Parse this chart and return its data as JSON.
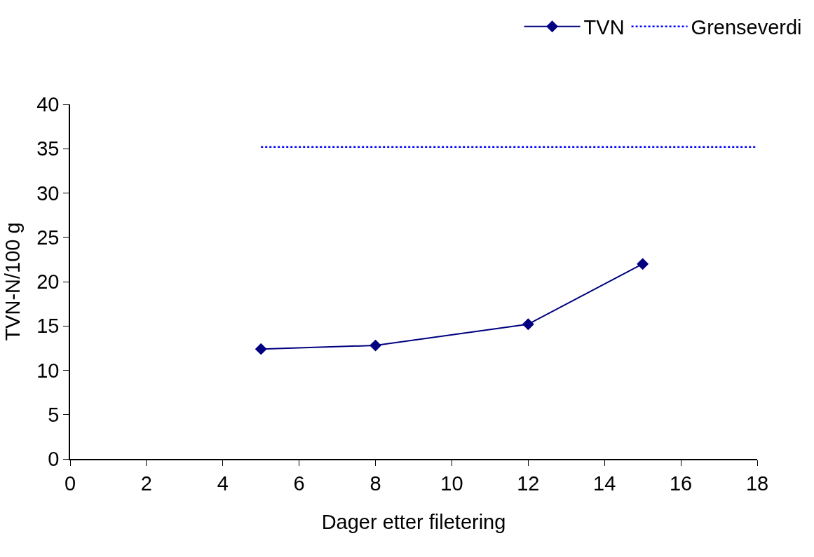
{
  "chart_data": {
    "type": "line",
    "xlabel": "Dager etter filetering",
    "ylabel": "TVN-N/100 g",
    "xlim": [
      0,
      18
    ],
    "xticks": [
      0,
      2,
      4,
      6,
      8,
      10,
      12,
      14,
      16,
      18
    ],
    "ylim": [
      0,
      40
    ],
    "yticks": [
      0,
      5,
      10,
      15,
      20,
      25,
      30,
      35,
      40
    ],
    "legend": "top right",
    "series": [
      {
        "name": "TVN",
        "color": "#000080",
        "x": [
          5,
          8,
          12,
          15
        ],
        "values": [
          12.4,
          12.8,
          15.2,
          22.0
        ],
        "marker": "diamond",
        "line_style": "solid"
      },
      {
        "name": "Grenseverdi",
        "color": "#0000ff",
        "x": [
          5,
          18
        ],
        "values": [
          35.2,
          35.2
        ],
        "marker": "none",
        "line_style": "dotted"
      }
    ]
  }
}
